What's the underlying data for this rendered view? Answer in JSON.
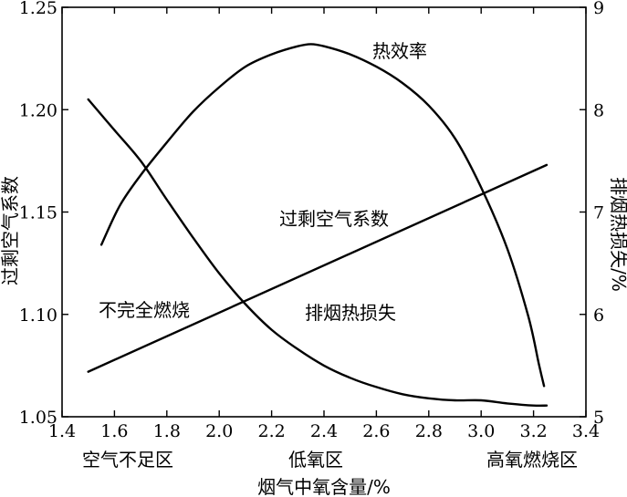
{
  "chart_data": {
    "type": "line",
    "xlabel": "烟气中氧含量/%",
    "ylabel_left": "过剩空气系数",
    "ylabel_right": "排烟热损失/%",
    "xlim": [
      1.4,
      3.4
    ],
    "ylim_left": [
      1.05,
      1.25
    ],
    "ylim_right": [
      5,
      9
    ],
    "x_ticks": [
      "1.4",
      "1.6",
      "1.8",
      "2.0",
      "2.2",
      "2.4",
      "2.6",
      "2.8",
      "3.0",
      "3.2",
      "3.4"
    ],
    "y_left_ticks": [
      "1.05",
      "1.10",
      "1.15",
      "1.20",
      "1.25"
    ],
    "y_right_ticks": [
      "5",
      "6",
      "7",
      "8",
      "9"
    ],
    "regions": [
      "空气不足区",
      "低氧区",
      "高氧燃烧区"
    ],
    "annotations": [
      "热效率",
      "过剩空气系数",
      "不完全燃烧",
      "排烟热损失"
    ],
    "series": [
      {
        "name": "热效率",
        "axis": "left",
        "points": [
          [
            1.55,
            1.134
          ],
          [
            1.62,
            1.153
          ],
          [
            1.7,
            1.168
          ],
          [
            1.8,
            1.184
          ],
          [
            1.9,
            1.199
          ],
          [
            2.0,
            1.211
          ],
          [
            2.1,
            1.221
          ],
          [
            2.2,
            1.227
          ],
          [
            2.3,
            1.231
          ],
          [
            2.35,
            1.232
          ],
          [
            2.4,
            1.231
          ],
          [
            2.5,
            1.227
          ],
          [
            2.6,
            1.221
          ],
          [
            2.7,
            1.213
          ],
          [
            2.8,
            1.202
          ],
          [
            2.9,
            1.186
          ],
          [
            3.0,
            1.162
          ],
          [
            3.1,
            1.132
          ],
          [
            3.18,
            1.099
          ],
          [
            3.22,
            1.076
          ],
          [
            3.24,
            1.065
          ]
        ]
      },
      {
        "name": "过剩空气系数",
        "axis": "left",
        "points": [
          [
            1.5,
            1.072
          ],
          [
            3.25,
            1.173
          ]
        ]
      },
      {
        "name": "排烟热损失",
        "axis": "right",
        "points": [
          [
            1.5,
            8.1
          ],
          [
            1.6,
            7.8
          ],
          [
            1.7,
            7.5
          ],
          [
            1.8,
            7.12
          ],
          [
            1.9,
            6.75
          ],
          [
            2.0,
            6.4
          ],
          [
            2.1,
            6.1
          ],
          [
            2.2,
            5.85
          ],
          [
            2.3,
            5.66
          ],
          [
            2.4,
            5.5
          ],
          [
            2.5,
            5.38
          ],
          [
            2.6,
            5.29
          ],
          [
            2.7,
            5.22
          ],
          [
            2.8,
            5.18
          ],
          [
            2.9,
            5.16
          ],
          [
            3.0,
            5.16
          ],
          [
            3.1,
            5.13
          ],
          [
            3.2,
            5.11
          ],
          [
            3.25,
            5.11
          ]
        ]
      }
    ]
  }
}
